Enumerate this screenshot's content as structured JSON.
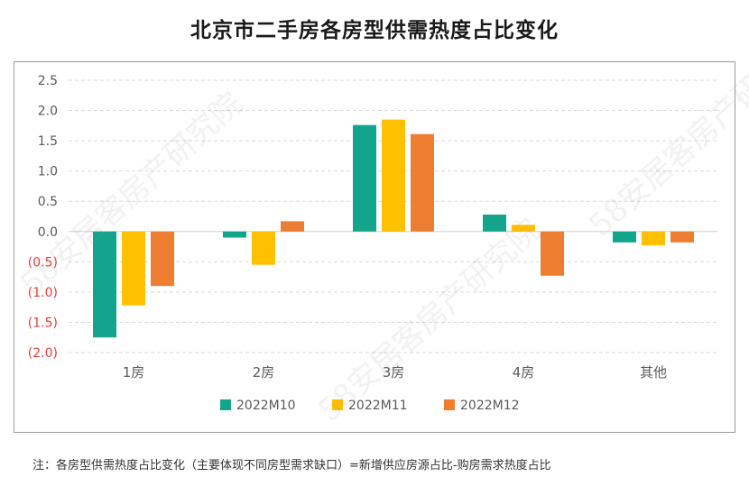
{
  "title": "北京市二手房各房型供需热度占比变化",
  "note": "注：各房型供需热度占比变化（主要体现不同房型需求缺口）=新增供应房源占比-购房需求热度占比",
  "watermark": "58安居客房产研究院",
  "chart_data": {
    "type": "bar",
    "title": "北京市二手房各房型供需热度占比变化",
    "categories": [
      "1房",
      "2房",
      "3房",
      "4房",
      "其他"
    ],
    "series": [
      {
        "name": "2022M10",
        "color": "#12A58C",
        "values": [
          -1.75,
          -0.1,
          1.76,
          0.28,
          -0.18
        ]
      },
      {
        "name": "2022M11",
        "color": "#FFC000",
        "values": [
          -1.22,
          -0.55,
          1.85,
          0.11,
          -0.23
        ]
      },
      {
        "name": "2022M12",
        "color": "#ED7D31",
        "values": [
          -0.9,
          0.17,
          1.61,
          -0.73,
          -0.18
        ]
      }
    ],
    "yticks": [
      "2.5",
      "2.0",
      "1.5",
      "1.0",
      "0.5",
      "0.0",
      "(0.5)",
      "(1.0)",
      "(1.5)",
      "(2.0)"
    ],
    "ylim": [
      -2.0,
      2.5
    ],
    "negative_tick_color": "#E0413A",
    "grid": "horizontal-dashed",
    "legend": "bottom-center"
  }
}
